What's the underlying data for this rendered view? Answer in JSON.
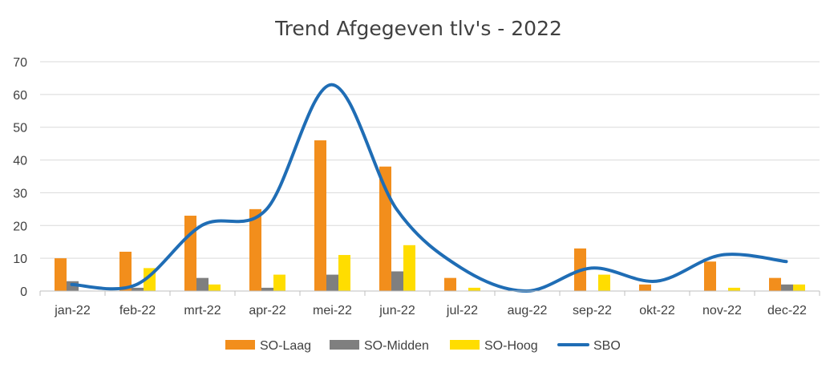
{
  "chart_data": {
    "type": "bar",
    "title": "Trend Afgegeven tlv's -  2022",
    "xlabel": "",
    "ylabel": "",
    "ylim": [
      0,
      70
    ],
    "yticks": [
      0,
      10,
      20,
      30,
      40,
      50,
      60,
      70
    ],
    "grid": true,
    "legend_position": "bottom",
    "categories": [
      "jan-22",
      "feb-22",
      "mrt-22",
      "apr-22",
      "mei-22",
      "jun-22",
      "jul-22",
      "aug-22",
      "sep-22",
      "okt-22",
      "nov-22",
      "dec-22"
    ],
    "series": [
      {
        "name": "SO-Laag",
        "type": "bar",
        "color": "#f28e1c",
        "values": [
          10,
          12,
          23,
          25,
          46,
          38,
          4,
          0,
          13,
          2,
          9,
          4
        ]
      },
      {
        "name": "SO-Midden",
        "type": "bar",
        "color": "#7f7f7f",
        "values": [
          3,
          1,
          4,
          1,
          5,
          6,
          0,
          0,
          0,
          0,
          0,
          2
        ]
      },
      {
        "name": "SO-Hoog",
        "type": "bar",
        "color": "#ffdd00",
        "values": [
          0,
          7,
          2,
          5,
          11,
          14,
          1,
          0,
          5,
          0,
          1,
          2
        ]
      },
      {
        "name": "SBO",
        "type": "line",
        "smooth": true,
        "color": "#1f6db5",
        "values": [
          2,
          2,
          20,
          25,
          63,
          25,
          7,
          0,
          7,
          3,
          11,
          9
        ]
      }
    ]
  }
}
